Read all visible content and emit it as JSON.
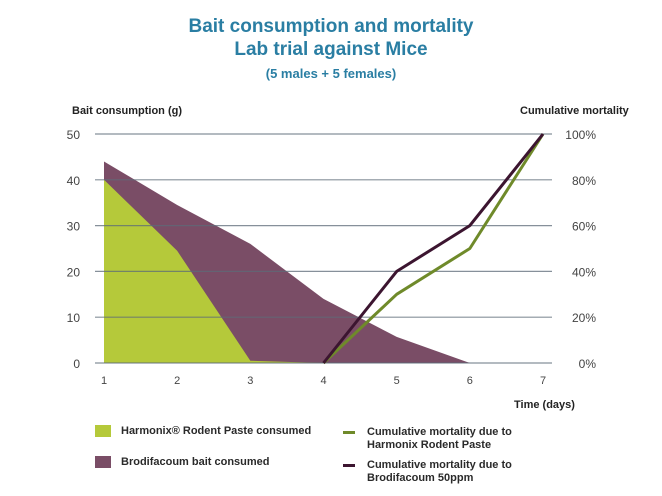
{
  "chart_data": {
    "type": "area+line",
    "title": "Bait consumption and mortality",
    "subtitle": "Lab trial against Mice",
    "subtitle2": "(5 males + 5 females)",
    "xlabel": "Time (days)",
    "ylabel_left": "Bait consumption (g)",
    "ylabel_right": "Cumulative mortality",
    "x": [
      1,
      2,
      3,
      4,
      5,
      6,
      7
    ],
    "x_ticks": [
      "1",
      "2",
      "3",
      "4",
      "5",
      "6",
      "7"
    ],
    "ylim_left": [
      0,
      50
    ],
    "y_ticks_left": [
      "0",
      "10",
      "20",
      "30",
      "40",
      "50"
    ],
    "ylim_right": [
      0,
      100
    ],
    "y_ticks_right": [
      "0%",
      "20%",
      "40%",
      "60%",
      "80%",
      "100%"
    ],
    "grid": true,
    "legend_position": "bottom",
    "areas": [
      {
        "name": "Brodifacoum bait consumed",
        "color": "#7a4d66",
        "values": [
          44,
          34.5,
          26,
          14,
          5.7,
          0,
          null
        ]
      },
      {
        "name": "Harmonix® Rodent Paste consumed",
        "color": "#b5c93a",
        "values": [
          40,
          24.5,
          0.5,
          0,
          null,
          null,
          null
        ]
      }
    ],
    "lines": [
      {
        "name": "Cumulative mortality due to Harmonix Rodent Paste",
        "color": "#6f8a2a",
        "values": [
          null,
          null,
          null,
          0,
          30,
          50,
          100
        ]
      },
      {
        "name": "Cumulative mortality due to Brodifacoum 50ppm",
        "color": "#3c1530",
        "values": [
          null,
          null,
          null,
          0,
          40,
          60,
          100
        ]
      }
    ]
  }
}
